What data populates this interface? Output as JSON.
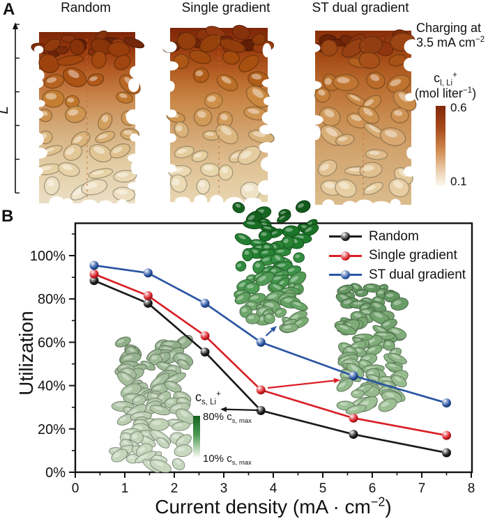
{
  "figure": {
    "background": "#ffffff"
  },
  "panel_a": {
    "letter": "A",
    "column_titles": [
      "Random",
      "Single gradient",
      "ST dual gradient"
    ],
    "charging": {
      "line1": "Charging at",
      "line2_pre": "3.5 mA cm",
      "line2_sup": "−2"
    },
    "length_axis_label": "L",
    "colorbar": {
      "symbol": "c",
      "sub": "l, Li",
      "sup": "+",
      "unit_pre": "(mol liter",
      "unit_sup": "−1",
      "unit_post": ")",
      "max_label": "0.6",
      "min_label": "0.1",
      "top_color": "#82260a",
      "bottom_color": "#fdf8f0"
    }
  },
  "panel_b": {
    "letter": "B",
    "legend": [
      {
        "label": "Random",
        "color": "#1a1a1a"
      },
      {
        "label": "Single gradient",
        "color": "#d91f26"
      },
      {
        "label": "ST dual gradient",
        "color": "#2a55a3"
      }
    ],
    "inset_colorbar": {
      "symbol": "c",
      "sub": "s, Li",
      "sup": "+",
      "max_pct": "80% ",
      "max_sym": "c",
      "max_sub": "s, max",
      "min_pct": "10% ",
      "min_sym": "c",
      "min_sub": "s, max",
      "top_color": "#14621f",
      "bottom_color": "#ffffff"
    }
  },
  "chart_data": {
    "type": "line",
    "title": "",
    "xlabel": "Current density (mA · cm−2)",
    "xlabel_parts": {
      "pre": "Current density (mA · cm",
      "sup": "−2",
      "post": ")"
    },
    "ylabel": "Utilization",
    "xlim": [
      0,
      8.06
    ],
    "ylim": [
      0,
      115
    ],
    "x_ticks": [
      0,
      1,
      2,
      3,
      4,
      5,
      6,
      7,
      8
    ],
    "x_tick_labels": [
      "0",
      "1",
      "2",
      "3",
      "4",
      "5",
      "6",
      "7",
      "8"
    ],
    "x_minor_step": 0.5,
    "y_ticks": [
      0,
      20,
      40,
      60,
      80,
      100
    ],
    "y_tick_labels": [
      "0%",
      "20%",
      "40%",
      "60%",
      "80%",
      "100%"
    ],
    "y_minor_ticks": [
      10,
      30,
      50,
      70,
      90,
      110
    ],
    "grid": false,
    "legend_position": "top-right",
    "x": [
      0.38,
      1.47,
      2.62,
      3.75,
      5.62,
      7.5
    ],
    "series": [
      {
        "name": "Random",
        "color": "#1a1a1a",
        "values": [
          88.5,
          78,
          55.5,
          28.5,
          17.5,
          9
        ]
      },
      {
        "name": "Single gradient",
        "color": "#d91f26",
        "values": [
          91.5,
          81.5,
          63,
          38,
          25,
          17
        ]
      },
      {
        "name": "ST dual gradient",
        "color": "#2a55a3",
        "values": [
          95.5,
          92,
          78,
          60,
          44.5,
          32
        ]
      }
    ]
  }
}
